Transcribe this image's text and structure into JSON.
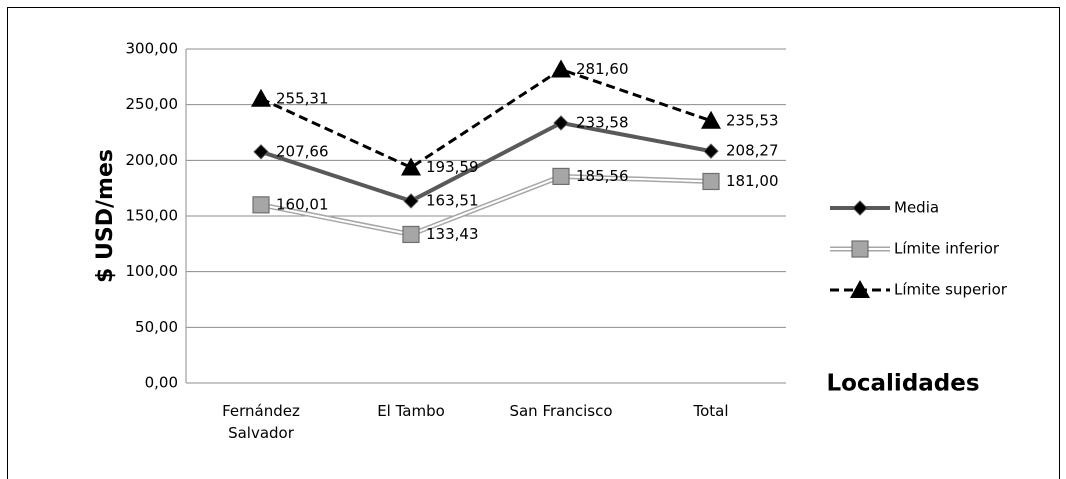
{
  "chart_data": {
    "type": "line",
    "y_label": "$ USD/mes",
    "x_label": "Localidades",
    "categories": [
      "Fernández Salvador",
      "El Tambo",
      "San Francisco",
      "Total"
    ],
    "series": [
      {
        "name": "Media",
        "color": "#595959",
        "marker": "diamond",
        "line": "solid",
        "values": [
          207.66,
          163.51,
          233.58,
          208.27
        ],
        "value_labels": [
          "207,66",
          "163,51",
          "233,58",
          "208,27"
        ]
      },
      {
        "name": "Límite inferior",
        "color": "#a6a6a6",
        "marker": "square",
        "line": "double",
        "values": [
          160.01,
          133.43,
          185.56,
          181.0
        ],
        "value_labels": [
          "160,01",
          "133,43",
          "185,56",
          "181,00"
        ]
      },
      {
        "name": "Límite superior",
        "color": "#000000",
        "marker": "triangle",
        "line": "dashed",
        "values": [
          255.31,
          193.59,
          281.6,
          235.53
        ],
        "value_labels": [
          "255,31",
          "193,59",
          "281,60",
          "235,53"
        ]
      }
    ],
    "ylim": [
      0,
      300
    ],
    "yticks": [
      {
        "value": 0,
        "label": "0,00"
      },
      {
        "value": 50,
        "label": "50,00"
      },
      {
        "value": 100,
        "label": "100,00"
      },
      {
        "value": 150,
        "label": "150,00"
      },
      {
        "value": 200,
        "label": "200,00"
      },
      {
        "value": 250,
        "label": "250,00"
      },
      {
        "value": 300,
        "label": "300,00"
      }
    ],
    "grid": true,
    "legend": "right"
  }
}
